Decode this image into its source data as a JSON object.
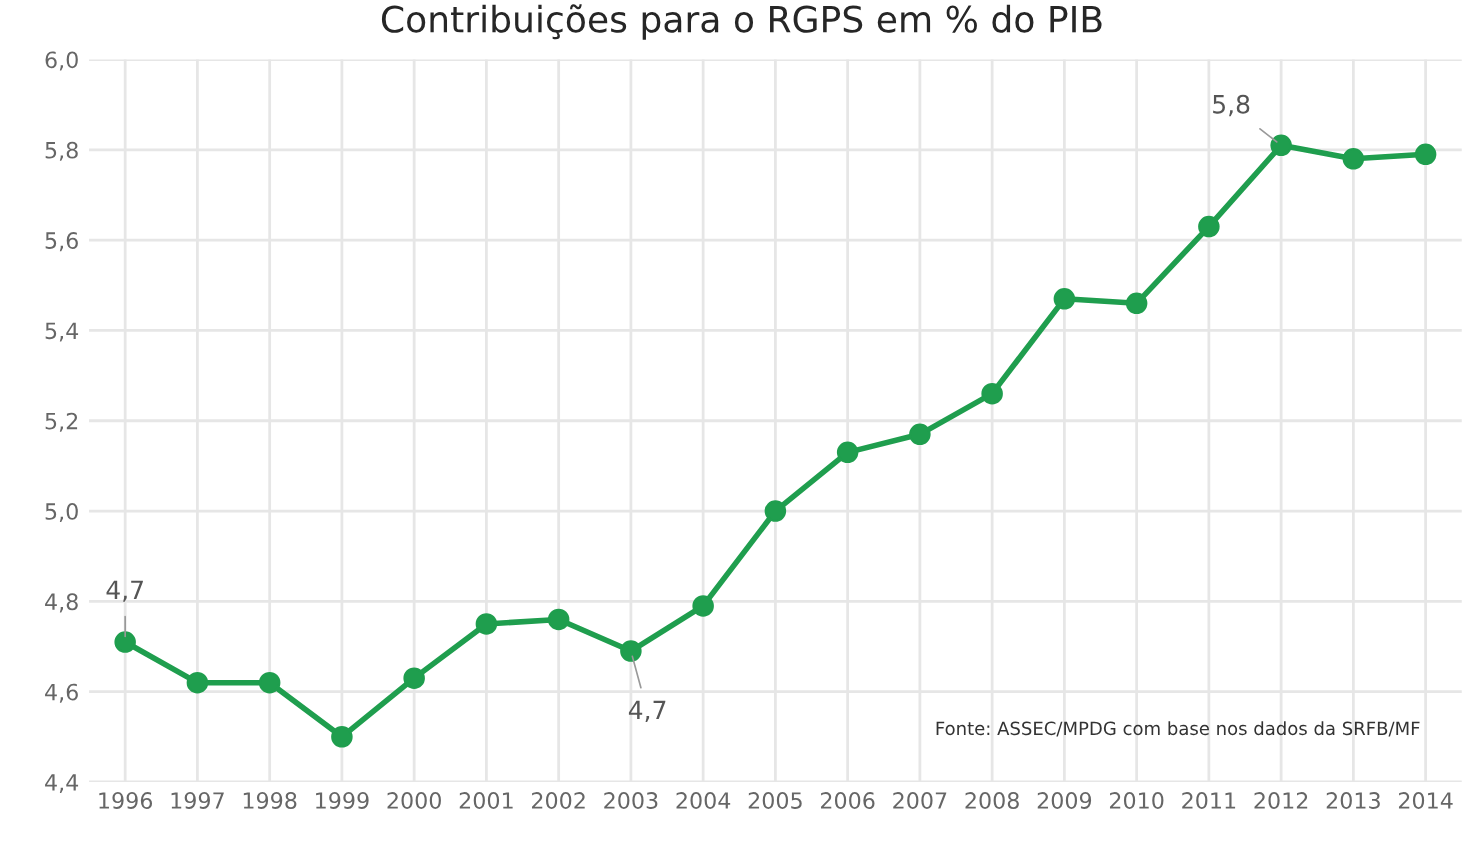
{
  "chart_data": {
    "type": "line",
    "title": "Contribuições para o RGPS em % do PIB",
    "categories": [
      "1996",
      "1997",
      "1998",
      "1999",
      "2000",
      "2001",
      "2002",
      "2003",
      "2004",
      "2005",
      "2006",
      "2007",
      "2008",
      "2009",
      "2010",
      "2011",
      "2012",
      "2013",
      "2014"
    ],
    "series": [
      {
        "color": "#1f9e4e",
        "values": [
          4.71,
          4.62,
          4.62,
          4.5,
          4.63,
          4.75,
          4.76,
          4.69,
          4.79,
          5.0,
          5.13,
          5.17,
          5.26,
          5.47,
          5.46,
          5.63,
          5.81,
          5.78,
          5.79
        ]
      }
    ],
    "ylim": [
      4.4,
      6.0
    ],
    "yticks": [
      {
        "value": 4.4,
        "label": "4,4"
      },
      {
        "value": 4.6,
        "label": "4,6"
      },
      {
        "value": 4.8,
        "label": "4,8"
      },
      {
        "value": 5.0,
        "label": "5,0"
      },
      {
        "value": 5.2,
        "label": "5,2"
      },
      {
        "value": 5.4,
        "label": "5,4"
      },
      {
        "value": 5.6,
        "label": "5,6"
      },
      {
        "value": 5.8,
        "label": "5,8"
      },
      {
        "value": 6.0,
        "label": "6,0"
      }
    ],
    "grid": true,
    "marker": "circle",
    "line_style": "solid",
    "annotations": [
      {
        "text": "4,7",
        "x": "1996",
        "y": 4.71
      },
      {
        "text": "4,7",
        "x": "2003",
        "y": 4.69
      },
      {
        "text": "5,8",
        "x": "2012",
        "y": 5.81
      },
      "Fonte: ASSEC/MPDG com base nos dados da SRFB/MF"
    ]
  }
}
